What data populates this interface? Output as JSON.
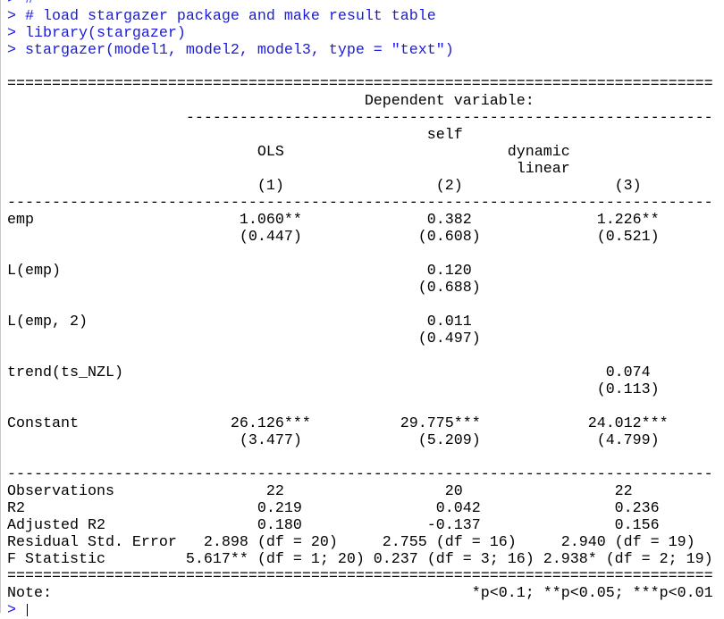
{
  "console": {
    "commands": [
      "> #",
      "> # load stargazer package and make result table",
      "> library(stargazer)",
      "> stargazer(model1, model2, model3, type = \"text\")"
    ],
    "output": [
      "",
      "===============================================================================",
      "                                        Dependent variable:",
      "                    -----------------------------------------------------------",
      "                                               self",
      "                            OLS                         dynamic",
      "                                                         linear",
      "                            (1)                 (2)                 (3)",
      "-------------------------------------------------------------------------------",
      "emp                       1.060**              0.382              1.226**",
      "                          (0.447)             (0.608)             (0.521)",
      "",
      "L(emp)                                         0.120",
      "                                              (0.688)",
      "",
      "L(emp, 2)                                      0.011",
      "                                              (0.497)",
      "",
      "trend(ts_NZL)                                                      0.074",
      "                                                                  (0.113)",
      "",
      "Constant                 26.126***          29.775***            24.012***",
      "                          (3.477)             (5.209)             (4.799)",
      "",
      "-------------------------------------------------------------------------------",
      "Observations                 22                  20                 22",
      "R2                          0.219               0.042               0.236",
      "Adjusted R2                 0.180              -0.137               0.156",
      "Residual Std. Error   2.898 (df = 20)     2.755 (df = 16)     2.940 (df = 19)",
      "F Statistic         5.617** (df = 1; 20) 0.237 (df = 3; 16) 2.938* (df = 2; 19)",
      "===============================================================================",
      "Note:                                               *p<0.1; **p<0.05; ***p<0.01"
    ],
    "prompt": "> "
  }
}
